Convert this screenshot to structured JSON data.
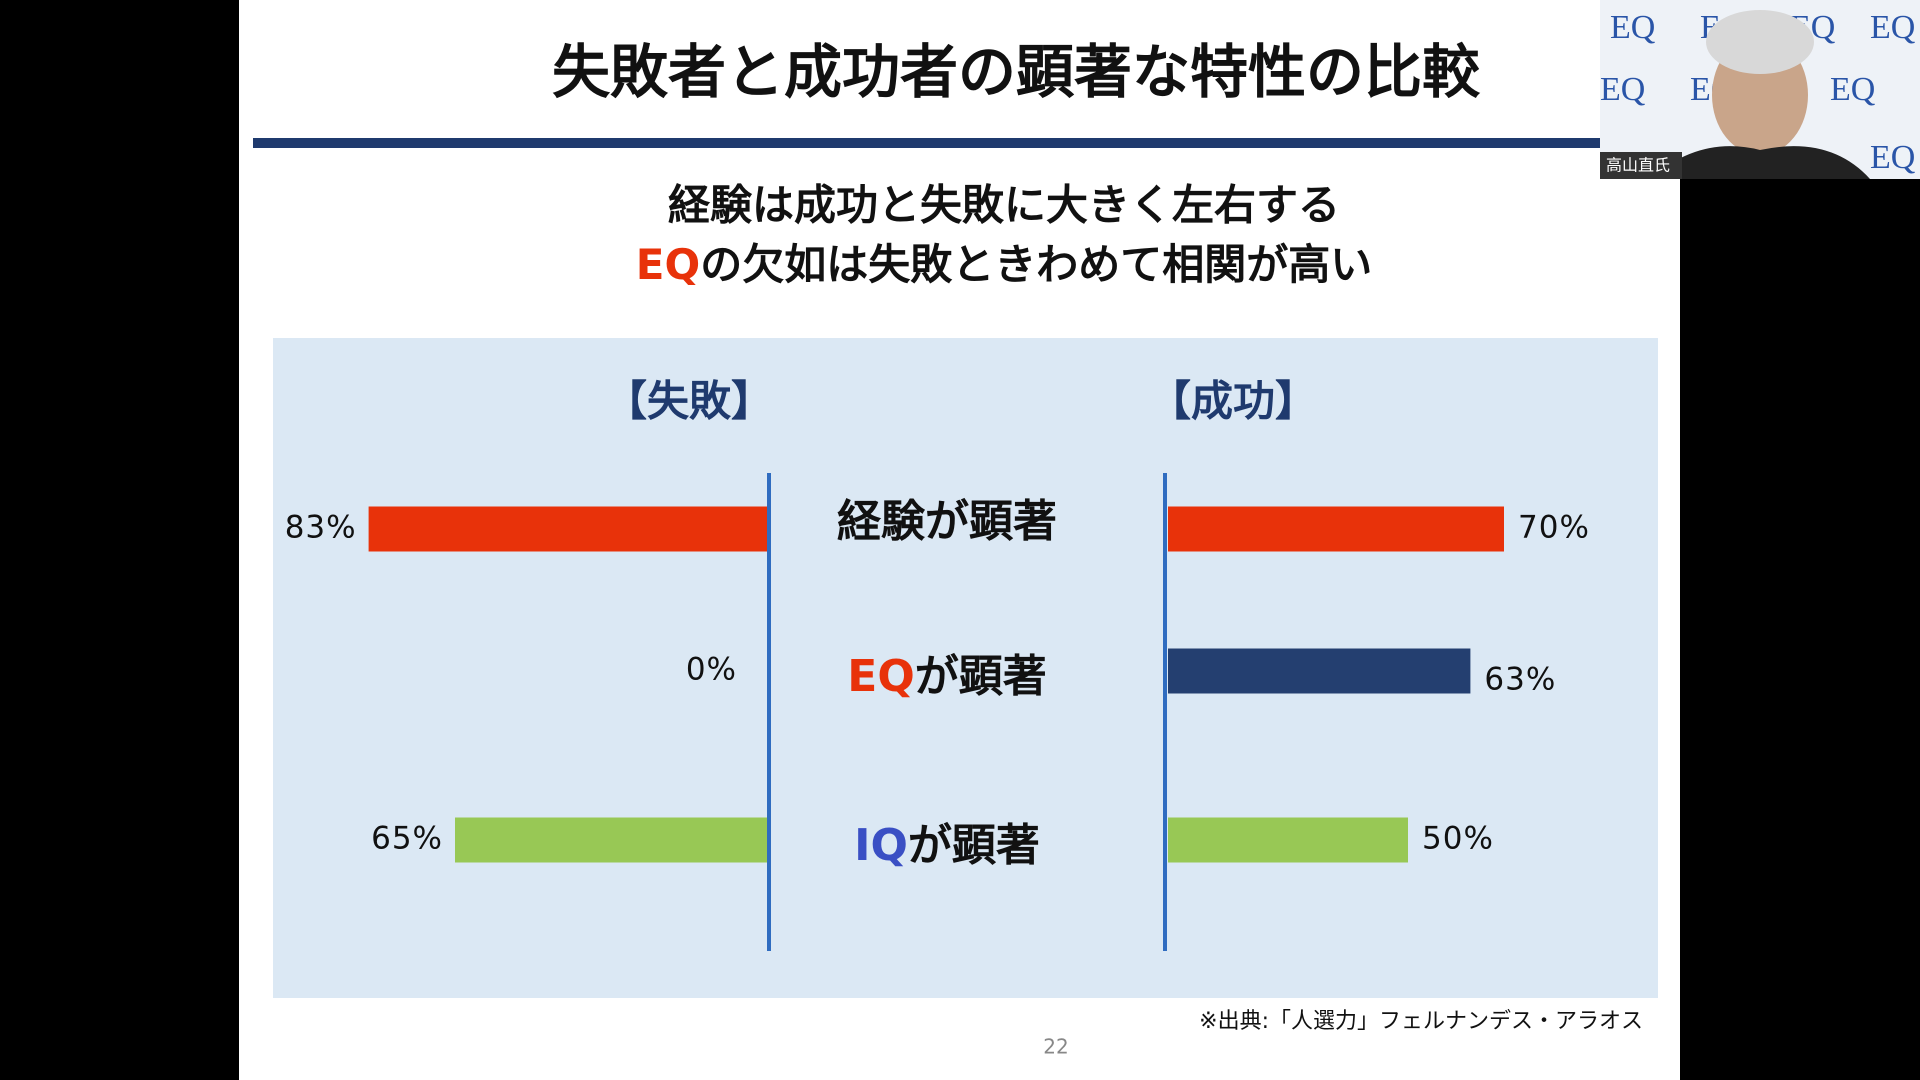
{
  "slide": {
    "title": "失敗者と成功者の顕著な特性の比較",
    "subtitle": [
      "経験は成功と失敗に大きく左右する",
      "EQの欠如は失敗ときわめて相関が高い"
    ],
    "source": "※出典:「人選力」フェルナンデス・アラオス",
    "page_number": "22"
  },
  "webcam": {
    "name": "高山直氏",
    "background_text": "EQ"
  },
  "chart_data": {
    "type": "butterfly",
    "categories": [
      "経験が顕著",
      "EQが顕著",
      "IQが顕著"
    ],
    "category_accents": [
      null,
      "#e8320a",
      "#3a4fc4"
    ],
    "colors": [
      "#e8320a",
      "#243f70",
      "#98c855"
    ],
    "xlim": [
      0,
      100
    ],
    "series": [
      {
        "name": "【失敗】",
        "side": "left",
        "values": [
          83,
          0,
          65
        ],
        "value_labels": [
          "83%",
          "0%",
          "65%"
        ]
      },
      {
        "name": "【成功】",
        "side": "right",
        "values": [
          70,
          63,
          50
        ],
        "value_labels": [
          "70%",
          "63%",
          "50%"
        ]
      }
    ]
  }
}
